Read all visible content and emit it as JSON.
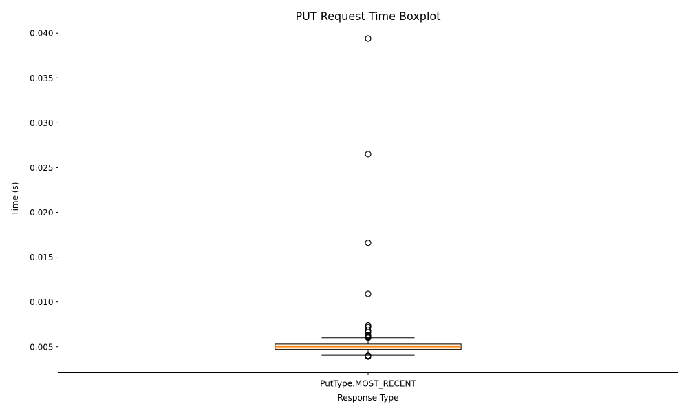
{
  "chart_data": {
    "type": "boxplot",
    "title": "PUT Request Time Boxplot",
    "xlabel": "Response Type",
    "ylabel": "Time (s)",
    "categories": [
      "PutType.MOST_RECENT"
    ],
    "ylim": [
      0.0021,
      0.0409
    ],
    "yticks": [
      0.005,
      0.01,
      0.015,
      0.02,
      0.025,
      0.03,
      0.035,
      0.04
    ],
    "ytick_labels": [
      "0.005",
      "0.010",
      "0.015",
      "0.020",
      "0.025",
      "0.030",
      "0.035",
      "0.040"
    ],
    "grid": false,
    "boxes": [
      {
        "category": "PutType.MOST_RECENT",
        "whisker_low": 0.00405,
        "q1": 0.0047,
        "median": 0.005,
        "q3": 0.0053,
        "whisker_high": 0.006,
        "outliers": [
          0.0394,
          0.0265,
          0.0166,
          0.0109,
          0.0074,
          0.0072,
          0.0068,
          0.0066,
          0.0063,
          0.0062,
          0.0061,
          0.006,
          0.004,
          0.0039
        ]
      }
    ],
    "colors": {
      "box_fill": "#fdebd0",
      "median": "#ff7f0e",
      "lines": "#000000"
    }
  }
}
